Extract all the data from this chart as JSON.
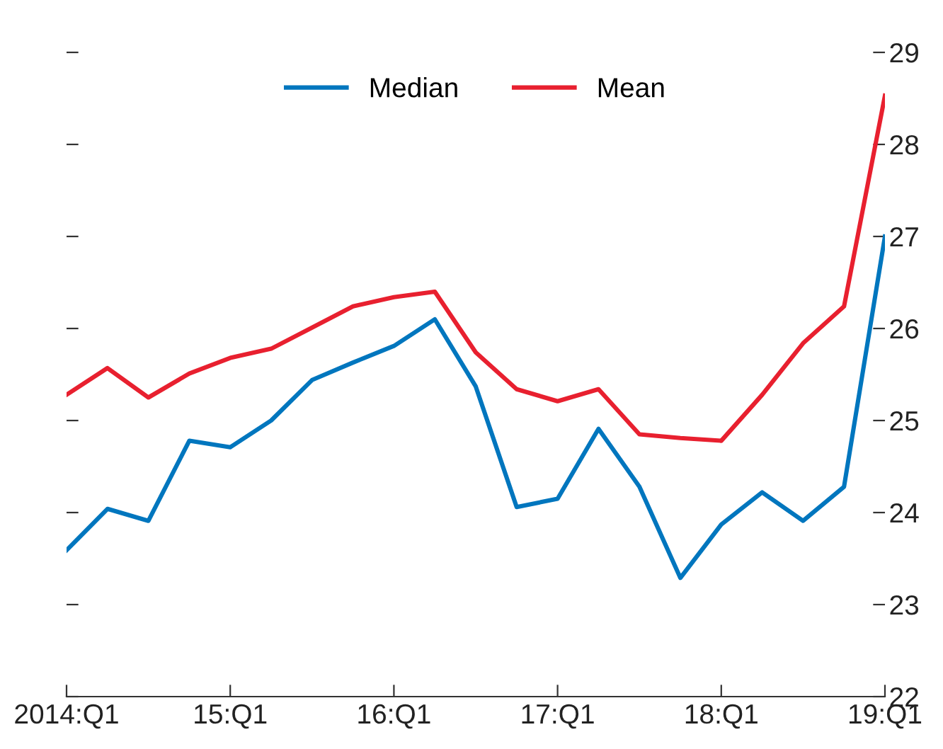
{
  "chart_data": {
    "type": "line",
    "categories": [
      "2014:Q1",
      null,
      null,
      null,
      "15:Q1",
      null,
      null,
      null,
      "16:Q1",
      null,
      null,
      null,
      "17:Q1",
      null,
      null,
      null,
      "18:Q1",
      null,
      null,
      null,
      "19:Q1"
    ],
    "series": [
      {
        "name": "Median",
        "color": "#0076be",
        "values": [
          23.59,
          24.04,
          23.91,
          24.78,
          24.71,
          25.0,
          25.44,
          25.63,
          25.81,
          26.1,
          25.37,
          24.06,
          24.15,
          24.91,
          24.28,
          23.29,
          23.87,
          24.22,
          23.91,
          24.28,
          27.0
        ]
      },
      {
        "name": "Mean",
        "color": "#e8202f",
        "values": [
          25.28,
          25.57,
          25.25,
          25.51,
          25.68,
          25.78,
          26.01,
          26.24,
          26.34,
          26.4,
          25.74,
          25.34,
          25.21,
          25.34,
          24.85,
          24.81,
          24.78,
          25.28,
          25.84,
          26.24,
          28.53
        ]
      }
    ],
    "ylim": [
      22,
      29
    ],
    "yticks": [
      22,
      23,
      24,
      25,
      26,
      27,
      28,
      29
    ],
    "grid": false,
    "legend": "top",
    "marker": "none",
    "line_style": "solid"
  }
}
